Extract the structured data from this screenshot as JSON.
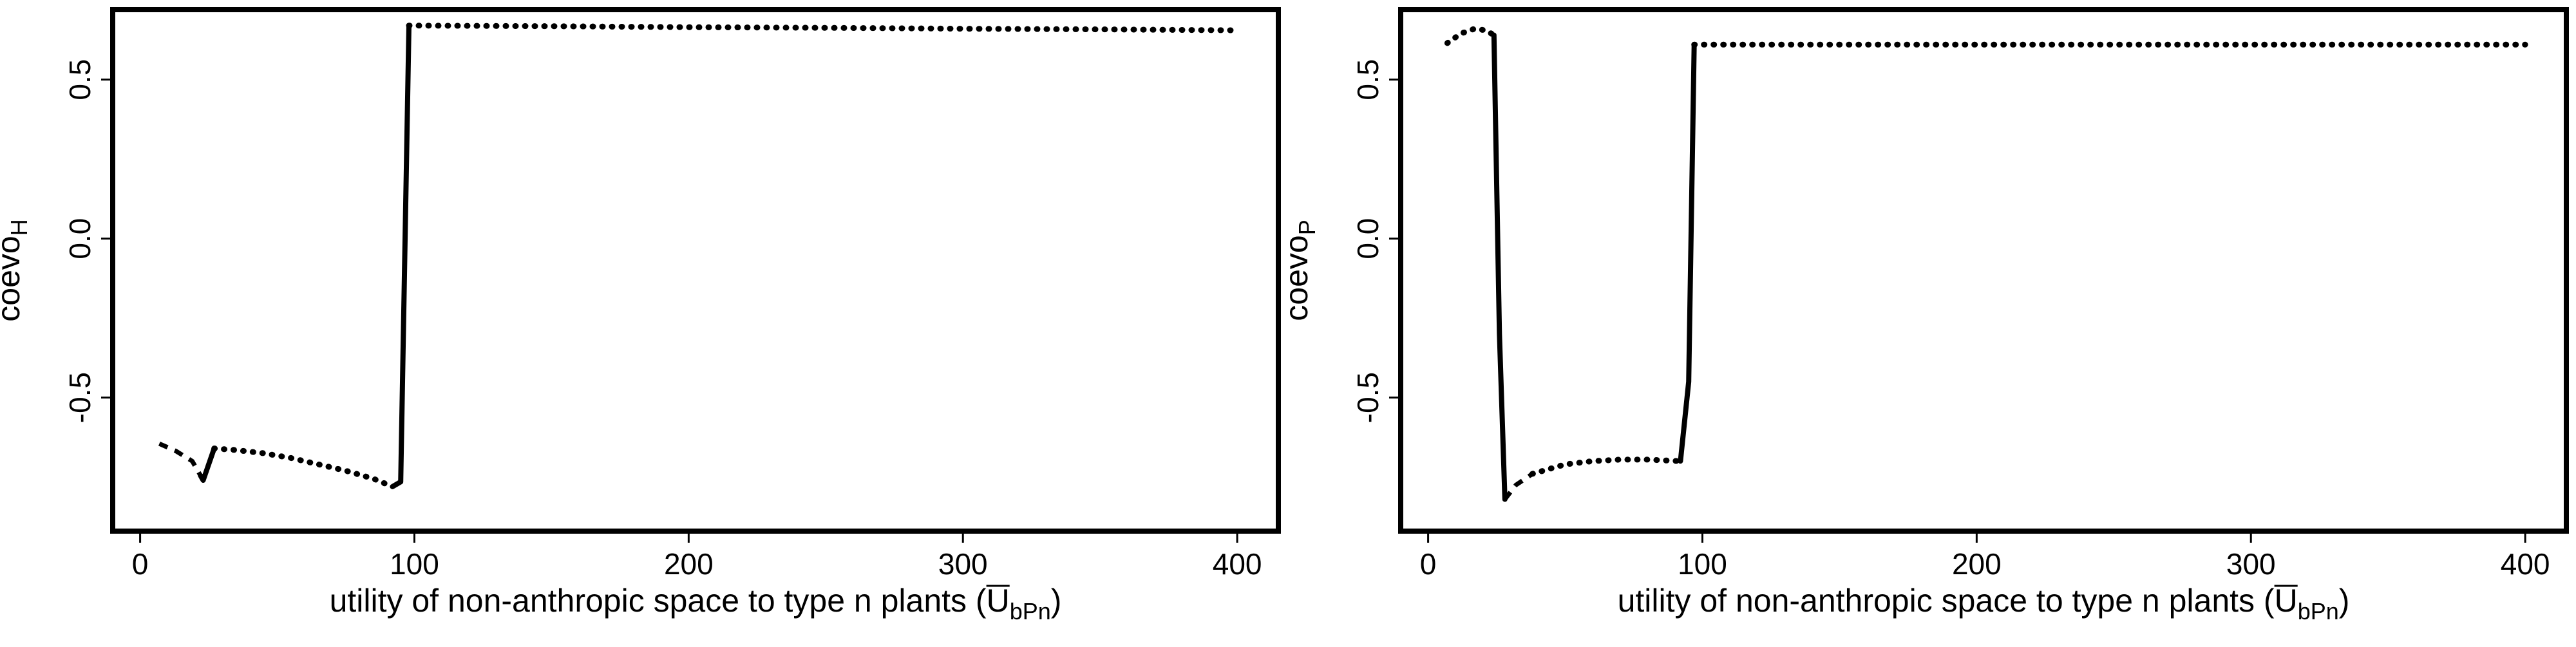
{
  "chart_data": [
    {
      "type": "line",
      "title": "",
      "xlabel": "utility of non-anthropic space to type n plants (U",
      "xlabel_subscript": "bPn",
      "xlabel_close": ")",
      "ylabel": "coevo",
      "ylabel_subscript": "H",
      "xlim": [
        -10,
        415
      ],
      "ylim": [
        -0.92,
        0.72
      ],
      "xticks": [
        0,
        100,
        200,
        300,
        400
      ],
      "xtick_labels": [
        "0",
        "100",
        "200",
        "300",
        "400"
      ],
      "yticks": [
        -0.5,
        0.0,
        0.5
      ],
      "ytick_labels": [
        "-0.5",
        "0.0",
        "0.5"
      ],
      "grid": false,
      "legend": "none",
      "series": [
        {
          "style": "dashed",
          "x": [
            7,
            13,
            19,
            22
          ],
          "y": [
            -0.645,
            -0.668,
            -0.7,
            -0.745
          ]
        },
        {
          "style": "solid",
          "x": [
            22,
            23,
            27
          ],
          "y": [
            -0.745,
            -0.76,
            -0.66
          ]
        },
        {
          "style": "dotted",
          "x": [
            27,
            35,
            45,
            55,
            65,
            75,
            85,
            92
          ],
          "y": [
            -0.66,
            -0.665,
            -0.675,
            -0.69,
            -0.71,
            -0.73,
            -0.755,
            -0.78
          ]
        },
        {
          "style": "solid",
          "x": [
            92,
            95,
            98
          ],
          "y": [
            -0.78,
            -0.765,
            0.67
          ]
        },
        {
          "style": "dotted",
          "x": [
            98,
            150,
            200,
            250,
            300,
            350,
            400
          ],
          "y": [
            0.67,
            0.668,
            0.665,
            0.663,
            0.66,
            0.658,
            0.655
          ]
        }
      ]
    },
    {
      "type": "line",
      "title": "",
      "xlabel": "utility of non-anthropic space to type n plants (U",
      "xlabel_subscript": "bPn",
      "xlabel_close": ")",
      "ylabel": "coevo",
      "ylabel_subscript": "P",
      "xlim": [
        -10,
        415
      ],
      "ylim": [
        -0.92,
        0.72
      ],
      "xticks": [
        0,
        100,
        200,
        300,
        400
      ],
      "xtick_labels": [
        "0",
        "100",
        "200",
        "300",
        "400"
      ],
      "yticks": [
        -0.5,
        0.0,
        0.5
      ],
      "ytick_labels": [
        "-0.5",
        "0.0",
        "0.5"
      ],
      "grid": false,
      "legend": "none",
      "series": [
        {
          "style": "dotted",
          "x": [
            7,
            12,
            17,
            21,
            24
          ],
          "y": [
            0.615,
            0.645,
            0.66,
            0.655,
            0.64
          ]
        },
        {
          "style": "solid",
          "x": [
            24,
            26,
            28
          ],
          "y": [
            0.64,
            -0.3,
            -0.82
          ]
        },
        {
          "style": "dashed",
          "x": [
            28,
            32,
            38
          ],
          "y": [
            -0.82,
            -0.775,
            -0.74
          ]
        },
        {
          "style": "dotted",
          "x": [
            38,
            50,
            60,
            70,
            80,
            92
          ],
          "y": [
            -0.74,
            -0.71,
            -0.7,
            -0.695,
            -0.695,
            -0.7
          ]
        },
        {
          "style": "solid",
          "x": [
            92,
            95,
            97
          ],
          "y": [
            -0.7,
            -0.45,
            0.61
          ]
        },
        {
          "style": "dotted",
          "x": [
            97,
            150,
            200,
            250,
            300,
            350,
            400
          ],
          "y": [
            0.61,
            0.61,
            0.61,
            0.61,
            0.61,
            0.61,
            0.61
          ]
        }
      ]
    }
  ]
}
